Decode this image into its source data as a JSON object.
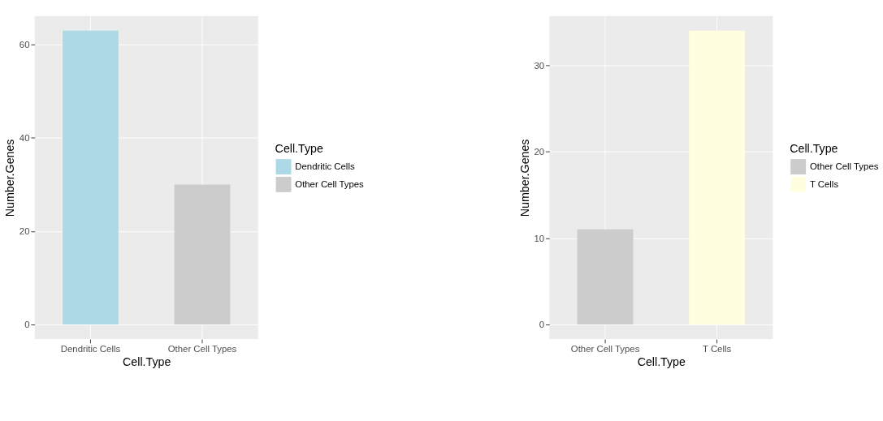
{
  "chart_data": [
    {
      "type": "bar",
      "categories": [
        "Dendritic Cells",
        "Other Cell Types"
      ],
      "series": [
        {
          "name": "Dendritic Cells",
          "color": "#add8e6",
          "values": [
            63,
            null
          ]
        },
        {
          "name": "Other Cell Types",
          "color": "#cccccc",
          "values": [
            null,
            30
          ]
        }
      ],
      "xlabel": "Cell.Type",
      "ylabel": "Number.Genes",
      "legend_title": "Cell.Type",
      "ylim": [
        -3.15,
        66.15
      ],
      "yticks": [
        0,
        20,
        40,
        60
      ],
      "grid": true,
      "legend": "right"
    },
    {
      "type": "bar",
      "categories": [
        "Other Cell Types",
        "T Cells"
      ],
      "series": [
        {
          "name": "Other Cell Types",
          "color": "#cccccc",
          "values": [
            11,
            null
          ]
        },
        {
          "name": "T Cells",
          "color": "#ffffe0",
          "values": [
            null,
            34
          ]
        }
      ],
      "xlabel": "Cell.Type",
      "ylabel": "Number.Genes",
      "legend_title": "Cell.Type",
      "ylim": [
        -1.7,
        35.7
      ],
      "yticks": [
        0,
        10,
        20,
        30
      ],
      "grid": true,
      "legend": "right"
    }
  ]
}
